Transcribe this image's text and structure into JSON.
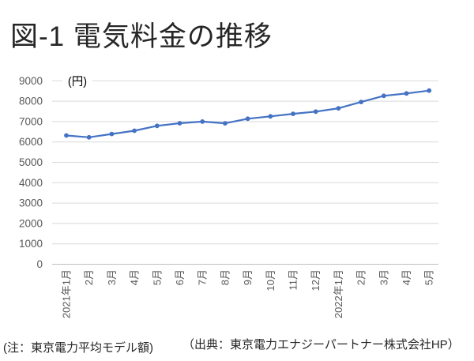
{
  "chart_data": {
    "type": "line",
    "title": "図-1 電気料金の推移",
    "unit_label": "(円)",
    "categories": [
      "2021年1月",
      "2月",
      "3月",
      "4月",
      "5月",
      "6月",
      "7月",
      "8月",
      "9月",
      "10月",
      "11月",
      "12月",
      "2022年1月",
      "2月",
      "3月",
      "4月",
      "5月"
    ],
    "values": [
      6317,
      6228,
      6390,
      6550,
      6790,
      6920,
      7000,
      6915,
      7140,
      7255,
      7380,
      7490,
      7650,
      7960,
      8265,
      8380,
      8520
    ],
    "ylim": [
      0,
      9000
    ],
    "ytick_step": 1000,
    "grid": true,
    "legend_position": "none",
    "line_color": "#4472C4",
    "marker_color": "#4472C4",
    "grid_color": "#D9D9D9",
    "axis_line_color": "#BFBFBF",
    "tick_label_color": "#595959",
    "unit_label_color": "#000000"
  },
  "notes": {
    "left": "(注：東京電力平均モデル額)",
    "source": "（出典：東京電力エナジーパートナー株式会社HP）"
  }
}
